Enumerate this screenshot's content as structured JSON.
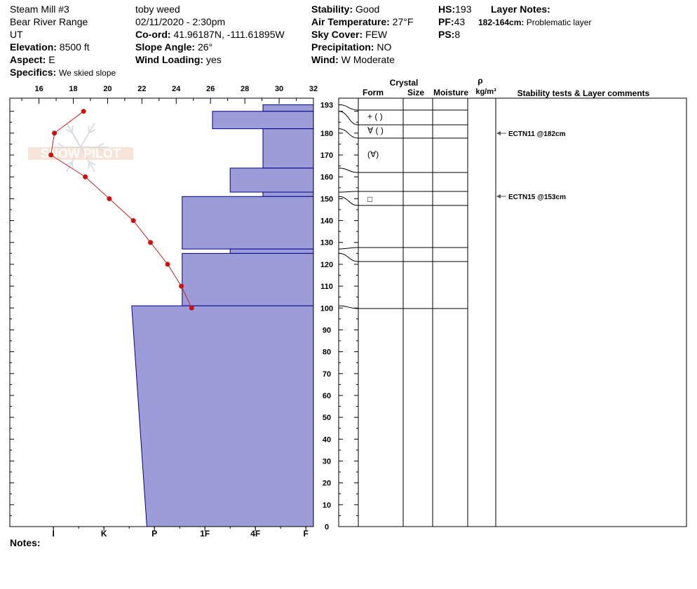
{
  "header": {
    "col1": {
      "location": "Steam Mill #3",
      "range": "Bear River Range",
      "state": "UT",
      "elevation_label": "Elevation:",
      "elevation_value": "8500 ft",
      "aspect_label": "Aspect:",
      "aspect_value": "E",
      "specifics_label": "Specifics:",
      "specifics_value": "We skied slope"
    },
    "col2": {
      "observer": "toby weed",
      "datetime": "02/11/2020 - 2:30pm",
      "coord_label": "Co-ord:",
      "coord_value": "41.96187N, -111.61895W",
      "slope_label": "Slope Angle:",
      "slope_value": "26°",
      "wind_loading_label": "Wind Loading:",
      "wind_loading_value": "yes"
    },
    "col3": {
      "stability_label": "Stability:",
      "stability_value": "Good",
      "air_temp_label": "Air Temperature:",
      "air_temp_value": "27°F",
      "sky_label": "Sky Cover:",
      "sky_value": "FEW",
      "precip_label": "Precipitation:",
      "precip_value": "NO",
      "wind_label": "Wind:",
      "wind_value": "W Moderate"
    },
    "col4": {
      "hs_label": "HS:",
      "hs_value": "193",
      "pf_label": "PF:",
      "pf_value": "43",
      "ps_label": "PS:",
      "ps_value": "8"
    },
    "layer_notes": {
      "title": "Layer Notes:",
      "range": "182-164cm:",
      "text": "Problematic layer"
    }
  },
  "logo_text": "SNOW PILOT",
  "notes_label": "Notes:",
  "colors": {
    "hardness_fill": "#9c9cd9",
    "hardness_stroke": "#00008b",
    "temp_line": "#cc2222",
    "temp_point": "#cc1111",
    "arrow": "#555555"
  },
  "chart_data": {
    "type": "snow-profile",
    "temperature_axis": {
      "ticks": [
        16,
        18,
        20,
        22,
        24,
        26,
        28,
        30,
        32
      ],
      "range": [
        14.3,
        32
      ]
    },
    "height_axis": {
      "ticks": [
        193,
        180,
        170,
        160,
        150,
        140,
        130,
        120,
        110,
        100,
        90,
        80,
        70,
        60,
        50,
        40,
        30,
        20,
        10,
        0
      ],
      "range": [
        0,
        196
      ]
    },
    "hardness_axis": {
      "labels": [
        "I",
        "K",
        "P",
        "1F",
        "4F",
        "F"
      ],
      "label_scale": [
        5.15,
        4.15,
        3.15,
        2.15,
        1.15,
        0.15
      ]
    },
    "hardness_layers": [
      {
        "top": 193,
        "bottom": 190,
        "hardness": 1.0
      },
      {
        "top": 190,
        "bottom": 182,
        "hardness": 2.0
      },
      {
        "top": 182,
        "bottom": 164,
        "hardness": 1.0
      },
      {
        "top": 164,
        "bottom": 153,
        "hardness": 1.65
      },
      {
        "top": 153,
        "bottom": 151,
        "hardness": 1.0
      },
      {
        "top": 151,
        "bottom": 127,
        "hardness": 2.6
      },
      {
        "top": 127,
        "bottom": 125,
        "hardness": 1.65
      },
      {
        "top": 125,
        "bottom": 101,
        "hardness": 2.6
      },
      {
        "top": 101,
        "bottom": 0,
        "hardness": 3.6,
        "hardness_bottom": 3.3
      }
    ],
    "temperature_profile": [
      {
        "height": 190,
        "temp": 18.6
      },
      {
        "height": 180,
        "temp": 16.9
      },
      {
        "height": 170,
        "temp": 16.7
      },
      {
        "height": 160,
        "temp": 18.7
      },
      {
        "height": 150,
        "temp": 20.1
      },
      {
        "height": 140,
        "temp": 21.5
      },
      {
        "height": 130,
        "temp": 22.5
      },
      {
        "height": 120,
        "temp": 23.5
      },
      {
        "height": 110,
        "temp": 24.3
      },
      {
        "height": 100,
        "temp": 24.9
      }
    ],
    "table_columns": [
      "Form",
      "Size",
      "Moisture",
      "Stability tests & Layer comments"
    ],
    "table_header_extra": {
      "crystal": "Crystal",
      "rho": "ρ",
      "rho_unit": "kg/m³"
    },
    "layer_boundaries": [
      193,
      190,
      182,
      164,
      153,
      151,
      127,
      125,
      101
    ],
    "layer_forms": [
      {
        "height": 186,
        "text": "+ (  )",
        "symbol": "dh"
      },
      {
        "height": 180,
        "text": "∀ (  )",
        "symbol": "dh"
      },
      {
        "height": 172,
        "text": "  (∀)",
        "symbol": "dh-lead"
      },
      {
        "height": 152,
        "text": "□",
        "symbol": ""
      }
    ],
    "stability_tests": [
      {
        "height": 182,
        "text": "ECTN11 @182cm"
      },
      {
        "height": 153,
        "text": "ECTN15 @153cm"
      }
    ]
  }
}
